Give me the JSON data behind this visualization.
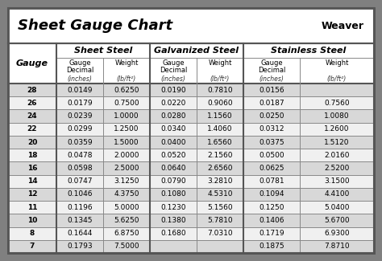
{
  "title": "Sheet Gauge Chart",
  "outer_bg": "#808080",
  "inner_bg": "#ffffff",
  "row_bg_dark": "#d8d8d8",
  "row_bg_light": "#f0f0f0",
  "header_bg": "#ffffff",
  "border_color": "#555555",
  "divider_color": "#888888",
  "gauges": [
    28,
    26,
    24,
    22,
    20,
    18,
    16,
    14,
    12,
    11,
    10,
    8,
    7
  ],
  "sheet_steel_dec": [
    "0.0149",
    "0.0179",
    "0.0239",
    "0.0299",
    "0.0359",
    "0.0478",
    "0.0598",
    "0.0747",
    "0.1046",
    "0.1196",
    "0.1345",
    "0.1644",
    "0.1793"
  ],
  "sheet_steel_wt": [
    "0.6250",
    "0.7500",
    "1.0000",
    "1.2500",
    "1.5000",
    "2.0000",
    "2.5000",
    "3.1250",
    "4.3750",
    "5.0000",
    "5.6250",
    "6.8750",
    "7.5000"
  ],
  "galv_dec": [
    "0.0190",
    "0.0220",
    "0.0280",
    "0.0340",
    "0.0400",
    "0.0520",
    "0.0640",
    "0.0790",
    "0.1080",
    "0.1230",
    "0.1380",
    "0.1680",
    ""
  ],
  "galv_wt": [
    "0.7810",
    "0.9060",
    "1.1560",
    "1.4060",
    "1.6560",
    "2.1560",
    "2.6560",
    "3.2810",
    "4.5310",
    "5.1560",
    "5.7810",
    "7.0310",
    ""
  ],
  "ss_dec": [
    "0.0156",
    "0.0187",
    "0.0250",
    "0.0312",
    "0.0375",
    "0.0500",
    "0.0625",
    "0.0781",
    "0.1094",
    "0.1250",
    "0.1406",
    "0.1719",
    "0.1875"
  ],
  "ss_wt": [
    "",
    "0.7560",
    "1.0080",
    "1.2600",
    "1.5120",
    "2.0160",
    "2.5200",
    "3.1500",
    "4.4100",
    "5.0400",
    "5.6700",
    "6.9300",
    "7.8710"
  ],
  "fig_w": 4.74,
  "fig_h": 3.25,
  "dpi": 100
}
